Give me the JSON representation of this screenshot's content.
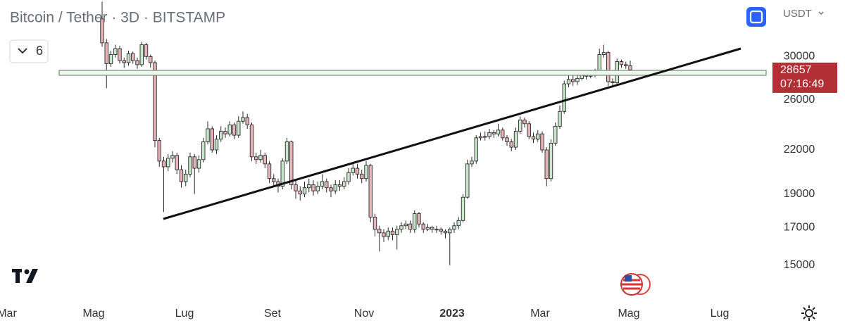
{
  "header": {
    "title": "Bitcoin / Tether · 3D · BITSTAMP",
    "currency": "USDT"
  },
  "toolbar": {
    "collapse_count": "6"
  },
  "chart_data": {
    "type": "candlestick",
    "log": true,
    "up_color": "#c8e6c9",
    "down_color": "#e8b4ba",
    "outline_color": "#2b2b2b",
    "last_price": 28657,
    "countdown": "07:16:49",
    "last_price_color": "#b22f35",
    "ylim": [
      13400,
      36200
    ],
    "yticks": [
      30000,
      26000,
      22000,
      19000,
      17000,
      15000
    ],
    "xlim": [
      -23.2,
      151.2
    ],
    "xticks": [
      {
        "value": -21.6,
        "label": "Mar"
      },
      {
        "value": -1.92,
        "label": "Mag"
      },
      {
        "value": 18.72,
        "label": "Lug"
      },
      {
        "value": 38.72,
        "label": "Set"
      },
      {
        "value": 59.52,
        "label": "Nov"
      },
      {
        "value": 79.52,
        "label": "2023"
      },
      {
        "value": 99.52,
        "label": "Mar"
      },
      {
        "value": 119.68,
        "label": "Mag"
      },
      {
        "value": 140.32,
        "label": "Lug"
      }
    ],
    "open": [
      34000,
      31400,
      29300,
      30200,
      30800,
      29600,
      29400,
      30300,
      29600,
      29200,
      31200,
      30000,
      29400,
      22700,
      21200,
      20800,
      21400,
      21600,
      20600,
      19800,
      20300,
      21500,
      20700,
      21300,
      22600,
      23600,
      22000,
      22800,
      23400,
      23200,
      23900,
      23100,
      24200,
      24500,
      23900,
      21500,
      21300,
      21600,
      21000,
      20000,
      19800,
      19500,
      21200,
      22600,
      19600,
      19200,
      19000,
      19400,
      19600,
      19200,
      19500,
      19800,
      19400,
      19200,
      19600,
      19500,
      19800,
      20400,
      20700,
      20300,
      20000,
      20900,
      17600,
      16900,
      16700,
      16500,
      16800,
      16600,
      16900,
      17100,
      17200,
      16900,
      17800,
      17200,
      16900,
      17000,
      16900,
      16900,
      16800,
      16700,
      16900,
      17100,
      17400,
      18800,
      21000,
      21200,
      22900,
      23000,
      23000,
      23300,
      23200,
      23500,
      22900,
      22600,
      22200,
      23400,
      24300,
      24000,
      23000,
      22800,
      23200,
      22000,
      20000,
      22500,
      23800,
      25000,
      27400,
      27800,
      27600,
      27900,
      28200,
      28100,
      28300,
      28400,
      30200,
      30400,
      27600,
      27500,
      29500,
      29200,
      29100
    ],
    "high": [
      36000,
      31800,
      30600,
      31200,
      31100,
      29900,
      30600,
      30500,
      29900,
      31500,
      31400,
      30200,
      29600,
      22900,
      21500,
      21700,
      21900,
      21800,
      20900,
      20600,
      21800,
      21700,
      21600,
      22900,
      24200,
      23800,
      23100,
      23800,
      23700,
      24200,
      24100,
      24600,
      25000,
      24800,
      24100,
      21800,
      22000,
      21800,
      21200,
      20300,
      20000,
      21400,
      22900,
      22700,
      19900,
      19500,
      19800,
      20000,
      19900,
      19800,
      20300,
      20000,
      19600,
      19900,
      19900,
      20100,
      20700,
      21100,
      21000,
      20600,
      21200,
      21000,
      17800,
      17100,
      16900,
      17000,
      17000,
      17100,
      17300,
      17400,
      17400,
      18000,
      17900,
      17300,
      17200,
      17100,
      17100,
      17000,
      16900,
      17000,
      17300,
      17600,
      19000,
      21300,
      21500,
      23100,
      23300,
      23400,
      23600,
      23500,
      24000,
      23700,
      23100,
      22800,
      23700,
      24600,
      24500,
      24200,
      23300,
      23500,
      23400,
      22200,
      22800,
      24100,
      25500,
      27700,
      28500,
      28200,
      28300,
      28600,
      28500,
      28700,
      28800,
      30800,
      31200,
      30600,
      27900,
      29800,
      29700,
      29500,
      29600
    ],
    "low": [
      31000,
      27000,
      29000,
      29900,
      29300,
      28900,
      29100,
      29300,
      28800,
      29000,
      29700,
      28900,
      22200,
      20800,
      17900,
      20500,
      21100,
      20300,
      19400,
      19500,
      20100,
      19000,
      20400,
      21100,
      22400,
      21800,
      21700,
      22600,
      22900,
      23000,
      22800,
      22900,
      24000,
      23600,
      21200,
      21000,
      21100,
      20700,
      19700,
      19500,
      19100,
      19300,
      21000,
      19300,
      18700,
      18600,
      18800,
      19100,
      18900,
      19000,
      19300,
      19100,
      18800,
      19000,
      19200,
      19300,
      19600,
      20200,
      20000,
      19700,
      19800,
      17300,
      16500,
      15700,
      16200,
      16300,
      16300,
      15800,
      16700,
      16900,
      16700,
      16700,
      17000,
      16700,
      16800,
      16700,
      16700,
      16600,
      16400,
      15000,
      16700,
      16900,
      17300,
      18700,
      20800,
      21000,
      22700,
      22700,
      22800,
      22900,
      23000,
      22700,
      22300,
      21900,
      22000,
      23200,
      23700,
      22800,
      22500,
      22600,
      21800,
      19500,
      19800,
      22300,
      23600,
      24800,
      27100,
      27200,
      27300,
      27700,
      27800,
      27900,
      28000,
      28200,
      29900,
      27200,
      27100,
      27300,
      28900,
      28800,
      28400
    ],
    "close": [
      31400,
      29300,
      30200,
      30800,
      29600,
      29400,
      30300,
      29600,
      29200,
      31200,
      30000,
      29400,
      22700,
      21200,
      20800,
      21400,
      21600,
      20600,
      19800,
      20300,
      21500,
      20700,
      21300,
      22600,
      23600,
      22000,
      22800,
      23400,
      23200,
      23900,
      23100,
      24200,
      24500,
      23900,
      21500,
      21300,
      21600,
      21000,
      20000,
      19800,
      19500,
      21200,
      22600,
      19600,
      19200,
      19000,
      19400,
      19600,
      19200,
      19500,
      19800,
      19400,
      19200,
      19600,
      19500,
      19800,
      20400,
      20700,
      20300,
      20000,
      20900,
      17600,
      16900,
      16700,
      16500,
      16800,
      16600,
      16900,
      17100,
      17200,
      16900,
      17800,
      17200,
      16900,
      17000,
      16900,
      16900,
      16800,
      16700,
      16900,
      17100,
      17400,
      18800,
      21000,
      21200,
      22900,
      23000,
      23000,
      23300,
      23200,
      23500,
      22900,
      22600,
      22200,
      23400,
      24300,
      24000,
      23000,
      22800,
      23200,
      22000,
      20000,
      22500,
      23800,
      25000,
      27400,
      27800,
      27600,
      27900,
      28200,
      28100,
      28300,
      28400,
      30200,
      30400,
      27600,
      27500,
      29500,
      29200,
      29100,
      28700
    ]
  }
}
